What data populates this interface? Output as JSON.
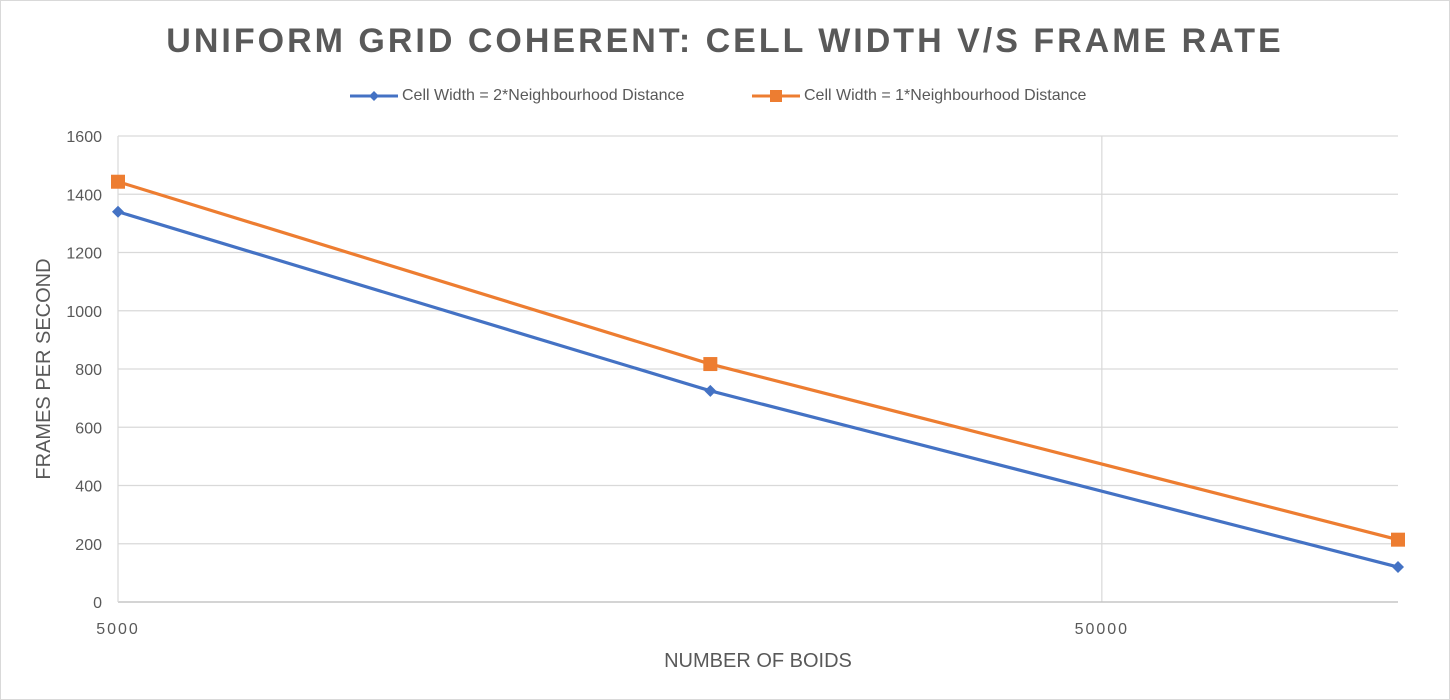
{
  "chart_data": {
    "type": "line",
    "title": "UNIFORM GRID COHERENT: CELL WIDTH V/S FRAME RATE",
    "xlabel": "NUMBER OF BOIDS",
    "ylabel": "FRAMES PER SECOND",
    "x_scale": "log",
    "x": [
      5000,
      20000,
      100000
    ],
    "xlim": [
      5000,
      100000
    ],
    "ylim": [
      0,
      1600
    ],
    "y_ticks": [
      0,
      200,
      400,
      600,
      800,
      1000,
      1200,
      1400,
      1600
    ],
    "x_tick_labels": [
      {
        "value": 5000,
        "label": "5000"
      },
      {
        "value": 50000,
        "label": "50000"
      }
    ],
    "x_gridlines": [
      50000
    ],
    "grid": true,
    "legend_position": "top",
    "series": [
      {
        "name": "Cell Width = 2*Neighbourhood Distance",
        "color": "#4472c4",
        "marker": "diamond",
        "values": [
          1340,
          725,
          120
        ]
      },
      {
        "name": "Cell Width = 1*Neighbourhood Distance",
        "color": "#ed7d31",
        "marker": "square",
        "values": [
          1443,
          817,
          214
        ]
      }
    ]
  }
}
